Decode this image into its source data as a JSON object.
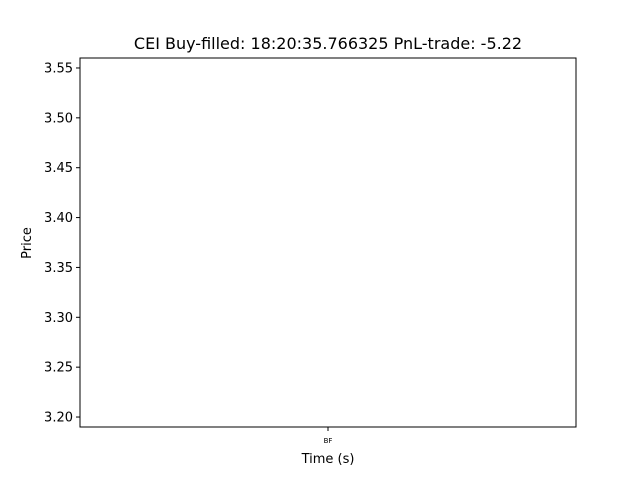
{
  "chart_data": {
    "type": "line",
    "title": "CEI  Buy-filled:  18:20:35.766325  PnL-trade:  -5.22",
    "xlabel": "Time (s)",
    "ylabel": "Price",
    "ylim": [
      3.19,
      3.56
    ],
    "y_ticks": [
      3.2,
      3.25,
      3.3,
      3.35,
      3.4,
      3.45,
      3.5,
      3.55
    ],
    "x_ticks": [
      {
        "value": 0,
        "label": "BF"
      }
    ],
    "xlim": [
      -1,
      1
    ],
    "series": [],
    "grid": false,
    "legend": "none"
  }
}
